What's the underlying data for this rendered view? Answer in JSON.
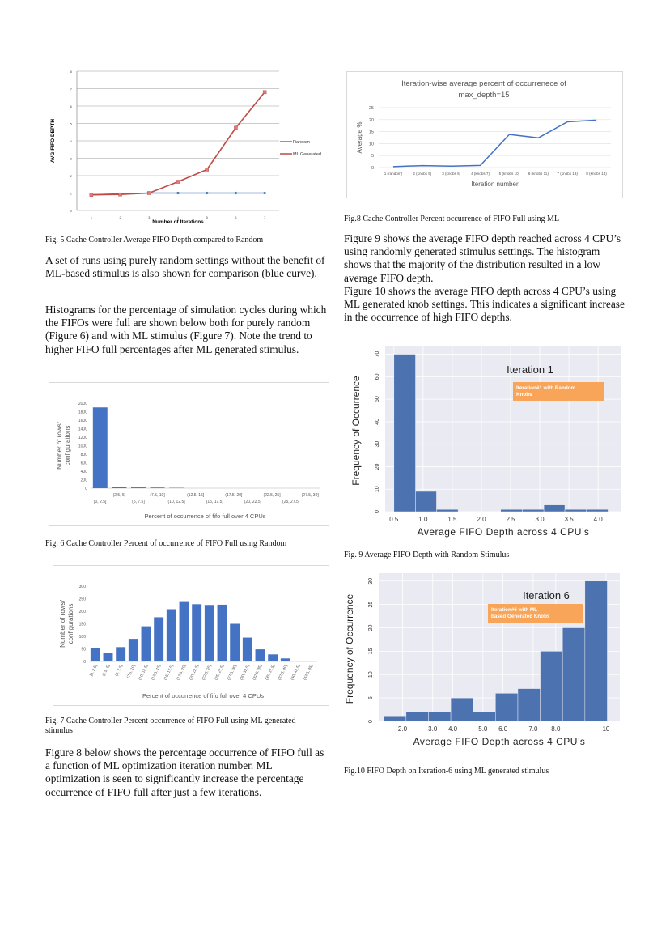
{
  "captions": {
    "fig5": "Fig. 5  Cache Controller Average FIFO Depth compared to Random",
    "fig6": "Fig. 6  Cache Controller Percent of occurrence of  FIFO Full using Random",
    "fig7": "Fig. 7  Cache Controller Percent occurrence of  FIFO Full using ML generated stimulus",
    "fig8": "Fig.8  Cache Controller Percent occurrence of  FIFO Full using ML",
    "fig9": "Fig. 9 Average  FIFO Depth with Random Stimulus",
    "fig10": "Fig.10  FIFO Depth on Iteration-6 using  ML generated stimulus"
  },
  "paragraphs": {
    "left1": "A set of runs using purely random settings without the benefit of ML-based stimulus is also shown for comparison (blue curve).",
    "left2": "Histograms for the percentage of simulation cycles during which the FIFOs were full are shown below both for purely random (Figure 6) and with ML stimulus  (Figure 7). Note the trend to higher FIFO full percentages after ML generated stimulus.",
    "left3": "Figure 8 below shows the percentage occurrence of FIFO full as a function of ML optimization iteration number. ML optimization is seen to significantly increase the percentage occurrence of FIFO full after just a few iterations.",
    "right1": "Figure 9 shows the average FIFO depth reached across 4 CPU’s using randomly generated stimulus settings. The histogram shows that the majority of the distribution resulted in a low average FIFO depth.",
    "right2": "Figure 10 shows the average FIFO depth across 4 CPU’s using ML generated knob settings. This indicates a significant increase in the occurrence of high FIFO depths."
  },
  "chart_data": [
    {
      "id": "fig5",
      "type": "line",
      "title": "",
      "xlabel": "Number of Iterations",
      "ylabel": "AVG FIFO DEPTH",
      "x": [
        1,
        2,
        3,
        4,
        5,
        6,
        7
      ],
      "ylim": [
        0,
        8
      ],
      "yticks": [
        "0",
        "1",
        "2",
        "3",
        "4",
        "5",
        "6",
        "7",
        "8"
      ],
      "legend": "right",
      "series": [
        {
          "name": "Random",
          "color": "#4a7ebb",
          "values": [
            0.9,
            0.95,
            1.0,
            1.0,
            1.0,
            1.0,
            1.0
          ]
        },
        {
          "name": "ML Generated",
          "color": "#be4b48",
          "values": [
            0.9,
            0.92,
            1.0,
            1.65,
            2.35,
            4.75,
            6.8
          ]
        }
      ]
    },
    {
      "id": "fig8",
      "type": "line",
      "title": "Iteration-wise average percent of occurrenece of max_depth=15",
      "title_lines": [
        "Iteration-wise average percent of occurrenece of",
        "max_depth=15"
      ],
      "xlabel": "Iteration number",
      "ylabel": "Average %",
      "categories": [
        "1 (random)",
        "2 (knobs 5)",
        "3 (knobs 6)",
        "4 (knobs 7)",
        "5 (knobs 10)",
        "6 (knobs 11)",
        "7 (knobs 13)",
        "8 (knobs 14)"
      ],
      "ylim": [
        0,
        25
      ],
      "yticks": [
        "0",
        "5",
        "10",
        "15",
        "20",
        "25"
      ],
      "series": [
        {
          "name": "Average %",
          "color": "#4472c4",
          "values": [
            0.4,
            0.8,
            0.6,
            0.9,
            13.8,
            12.4,
            19.1,
            19.8
          ]
        }
      ]
    },
    {
      "id": "fig6",
      "type": "bar",
      "xlabel": "Percent of occurrence of fifo full over 4 CPUs",
      "ylabel_lines": [
        "Number of rows/",
        "configurations"
      ],
      "ylim": [
        0,
        2000
      ],
      "yticks": [
        "0",
        "200",
        "400",
        "600",
        "800",
        "1000",
        "1200",
        "1400",
        "1600",
        "1800",
        "2000"
      ],
      "categories": [
        "[0, 2.5]",
        "(2.5, 5]",
        "(5, 7.5]",
        "(7.5, 10]",
        "(10, 12.5]",
        "(12.5, 15]",
        "(15, 17.5]",
        "(17.5, 20]",
        "(20, 22.5]",
        "(22.5, 25]",
        "(25, 27.5]",
        "(27.5, 30]"
      ],
      "values": [
        1900,
        25,
        18,
        15,
        8,
        0,
        0,
        0,
        0,
        0,
        0,
        0
      ],
      "color": "#4472c4"
    },
    {
      "id": "fig7",
      "type": "bar",
      "xlabel": "Percent of occurrence of fifo full over 4 CPUs",
      "ylabel_lines": [
        "Number of rows/",
        "configurations"
      ],
      "ylim": [
        0,
        300
      ],
      "yticks": [
        "0",
        "50",
        "100",
        "150",
        "200",
        "250",
        "300"
      ],
      "categories": [
        "[0, 2.5]",
        "(2.5, 5]",
        "(5, 7.5]",
        "(7.5, 10]",
        "(10, 12.5]",
        "(12.5, 15]",
        "(15, 17.5]",
        "(17.5, 20]",
        "(20, 22.5]",
        "(22.5, 25]",
        "(25, 27.5]",
        "(27.5, 30]",
        "(30, 32.5]",
        "(32.5, 35]",
        "(35, 37.5]",
        "(37.5, 40]",
        "(40, 42.5]",
        "(42.5, 45]"
      ],
      "values": [
        53,
        33,
        57,
        90,
        140,
        176,
        208,
        240,
        228,
        225,
        226,
        150,
        95,
        48,
        28,
        12,
        0,
        0
      ],
      "color": "#4472c4"
    },
    {
      "id": "fig9",
      "type": "bar",
      "title": "Iteration 1",
      "annotation": "Iteration#1 with Random Knobs",
      "annotation_lines": [
        "Iteration#1 with Random",
        "Knobs"
      ],
      "xlabel": "Average FIFO Depth across 4 CPU’s",
      "ylabel": "Frequency of Occurrence",
      "xlim": [
        0.35,
        4.4
      ],
      "ylim": [
        0,
        72
      ],
      "xticks": [
        0.5,
        1.0,
        1.5,
        2.0,
        2.5,
        3.0,
        3.5,
        4.0
      ],
      "xtick_labels": [
        "0.5",
        "1.0",
        "1.5",
        "2.0",
        "2.5",
        "3.0",
        "3.5",
        "4.0"
      ],
      "ytick_vals": [
        0,
        10,
        20,
        30,
        40,
        50,
        60,
        70
      ],
      "yticks": [
        "0",
        "10",
        "20",
        "30",
        "40",
        "50",
        "60",
        "70"
      ],
      "bin_edges": [
        0.5,
        0.87,
        1.23,
        1.6,
        1.97,
        2.33,
        2.7,
        3.07,
        3.43,
        3.8,
        4.17
      ],
      "values": [
        70,
        9,
        1,
        0,
        0,
        1,
        1,
        3,
        1,
        1
      ],
      "color": "#4c72b0",
      "annotation_color": "#f8a55a"
    },
    {
      "id": "fig10",
      "type": "bar",
      "title": "Iteration 6",
      "annotation": "Iteration#6 with ML based Generated Knobs",
      "annotation_lines": [
        "Iteration#6 with ML",
        "based Generated Knobs"
      ],
      "xlabel": "Average FIFO Depth across 4 CPU’s",
      "ylabel": "Frequency of Occurrence",
      "xlim": [
        0.9,
        10.5
      ],
      "ylim": [
        0,
        31
      ],
      "xticks": [
        2.0,
        3.0,
        4.0,
        5.0,
        6.0,
        7.0,
        8.0,
        10
      ],
      "xtick_labels": [
        "2.0",
        "3.0",
        "4.0",
        "5.0",
        "6.0",
        "7.0",
        "8.0",
        "10"
      ],
      "tick_pos": [
        1.85,
        3.05,
        3.85,
        5.05,
        5.85,
        7.05,
        7.95,
        9.95
      ],
      "ytick_vals": [
        0,
        5,
        10,
        15,
        20,
        25,
        30
      ],
      "yticks": [
        "0",
        "5",
        "10",
        "15",
        "20",
        "25",
        "30"
      ],
      "bin_edges": [
        1.1,
        1.99,
        2.88,
        3.77,
        4.66,
        5.55,
        6.44,
        7.33,
        8.22,
        9.11,
        10.0
      ],
      "values": [
        1,
        2,
        2,
        5,
        2,
        6,
        7,
        15,
        20,
        30
      ],
      "color": "#4c72b0",
      "annotation_color": "#f8a55a"
    }
  ]
}
